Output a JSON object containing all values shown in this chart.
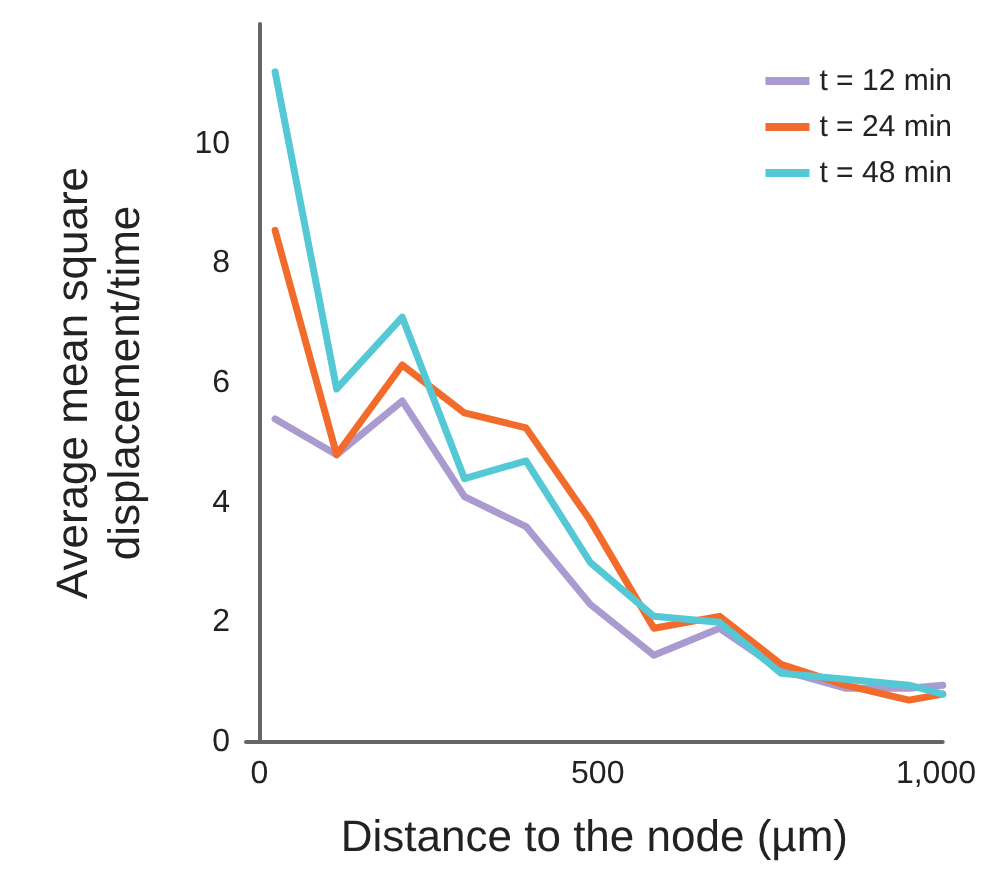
{
  "chart_data": {
    "type": "line",
    "xlabel": "Distance to the node (µm)",
    "ylabel": "Average mean square\ndisplacement/time",
    "x": [
      23,
      114,
      211,
      303,
      394,
      489,
      583,
      680,
      771,
      866,
      960,
      1010
    ],
    "series": [
      {
        "name": "t = 12 min",
        "color": "#a99bd0",
        "values": [
          5.4,
          4.8,
          5.7,
          4.1,
          3.6,
          2.3,
          1.45,
          1.9,
          1.2,
          0.9,
          0.9,
          0.95
        ]
      },
      {
        "name": "t = 24 min",
        "color": "#f26b2a",
        "values": [
          8.55,
          4.8,
          6.3,
          5.5,
          5.25,
          3.7,
          1.9,
          2.1,
          1.3,
          0.95,
          0.7,
          0.8
        ]
      },
      {
        "name": "t = 48 min",
        "color": "#55c8d6",
        "values": [
          11.2,
          5.9,
          7.1,
          4.4,
          4.7,
          3.0,
          2.1,
          2.0,
          1.15,
          1.05,
          0.95,
          0.8
        ]
      }
    ],
    "xlim": [
      -20,
      1010
    ],
    "xticks": [
      0,
      500,
      {
        "value": 1000,
        "label": "1,000"
      }
    ],
    "ylim": [
      0,
      12
    ],
    "yticks": [
      0,
      2,
      4,
      6,
      8,
      10
    ],
    "grid": false,
    "legend": "top right",
    "marker": "none",
    "line_style": "solid"
  }
}
